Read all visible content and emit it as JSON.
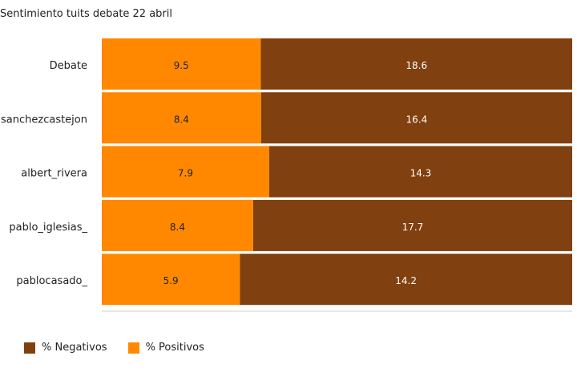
{
  "chart_data": {
    "type": "bar",
    "orientation": "horizontal",
    "stacked": true,
    "normalized": true,
    "title": "Sentimiento tuits debate 22 abril",
    "categories": [
      "Debate",
      "sanchezcastejon",
      "albert_rivera",
      "pablo_iglesias_",
      "pablocasado_"
    ],
    "series": [
      {
        "name": "% Positivos",
        "color": "#FF8800",
        "values": [
          9.5,
          8.4,
          7.9,
          8.4,
          5.9
        ]
      },
      {
        "name": "% Negativos",
        "color": "#80400F",
        "values": [
          18.6,
          16.4,
          14.3,
          17.7,
          14.2
        ]
      }
    ],
    "legend_order": [
      "% Negativos",
      "% Positivos"
    ],
    "legend_position": "bottom-left",
    "data_labels": true,
    "grid": false
  }
}
